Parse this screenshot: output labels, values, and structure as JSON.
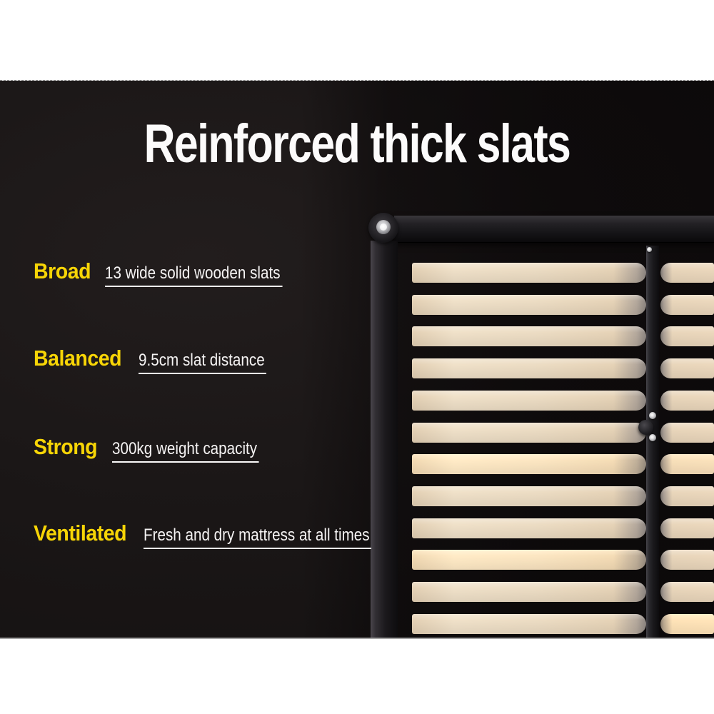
{
  "page": {
    "background_color": "#1b1717",
    "band_color": "#ffffff",
    "accent_color": "#f7d506",
    "text_color": "#ffffff"
  },
  "title": "Reinforced thick slats",
  "features": [
    {
      "label": "Broad",
      "description": "13 wide solid wooden slats"
    },
    {
      "label": "Balanced",
      "description": "9.5cm slat distance"
    },
    {
      "label": "Strong",
      "description": "300kg weight capacity"
    },
    {
      "label": "Ventilated",
      "description": "Fresh and dry mattress at all times"
    }
  ],
  "photo": {
    "subject": "black metal bed frame corner with light wooden slats and center support rail",
    "visible_slat_rows": 12,
    "slat_color": "#ead8bf",
    "frame_color": "#141215"
  }
}
